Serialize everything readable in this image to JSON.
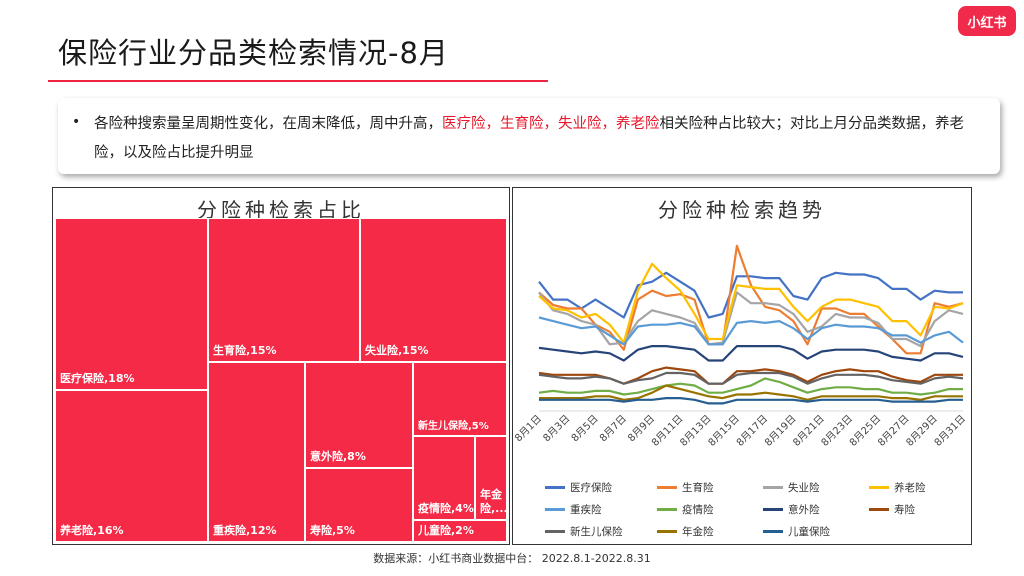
{
  "header": {
    "title": "保险行业分品类检索情况-8月",
    "logo_text": "小红书"
  },
  "note": {
    "bullet": "•",
    "segments": [
      {
        "text": "各险种搜索量呈周期性变化，在周末降低，周中升高，",
        "highlight": false
      },
      {
        "text": "医疗险，生育险，失业险，养老险",
        "highlight": true
      },
      {
        "text": "相关险种占比较大；对比上月分品类数据，养老险，以及险占比提升明显",
        "highlight": false
      }
    ]
  },
  "treemap": {
    "title": "分险种检索占比",
    "tiles": [
      {
        "label": "医疗保险,18%"
      },
      {
        "label": "养老险,16%"
      },
      {
        "label": "生育险,15%"
      },
      {
        "label": "失业险,15%"
      },
      {
        "label": "重疾险,12%"
      },
      {
        "label": "意外险,8%"
      },
      {
        "label": "寿险,5%"
      },
      {
        "label": "新生儿保险,5%"
      },
      {
        "label": "疫情险,4%"
      },
      {
        "label": "年金险,..."
      },
      {
        "label": "儿童险,2%"
      }
    ]
  },
  "chart_data": {
    "type": "line",
    "title": "分险种检索趋势",
    "x": [
      "8月1日",
      "8月2日",
      "8月3日",
      "8月4日",
      "8月5日",
      "8月6日",
      "8月7日",
      "8月8日",
      "8月9日",
      "8月10日",
      "8月11日",
      "8月12日",
      "8月13日",
      "8月14日",
      "8月15日",
      "8月16日",
      "8月17日",
      "8月18日",
      "8月19日",
      "8月20日",
      "8月21日",
      "8月22日",
      "8月23日",
      "8月24日",
      "8月25日",
      "8月26日",
      "8月27日",
      "8月28日",
      "8月29日",
      "8月30日",
      "8月31日"
    ],
    "xtick_labels": [
      "8月1日",
      "8月3日",
      "8月5日",
      "8月7日",
      "8月9日",
      "8月11日",
      "8月13日",
      "8月15日",
      "8月17日",
      "8月19日",
      "8月21日",
      "8月23日",
      "8月25日",
      "8月27日",
      "8月29日",
      "8月31日"
    ],
    "ylim": [
      0,
      100
    ],
    "series": [
      {
        "name": "医疗保险",
        "color": "#4472c4",
        "values": [
          70,
          60,
          60,
          55,
          60,
          55,
          50,
          68,
          70,
          75,
          70,
          65,
          50,
          52,
          73,
          73,
          72,
          72,
          62,
          60,
          72,
          75,
          74,
          74,
          72,
          66,
          66,
          60,
          65,
          64,
          64
        ]
      },
      {
        "name": "生育险",
        "color": "#ed7d31",
        "values": [
          64,
          57,
          55,
          55,
          46,
          42,
          32,
          60,
          65,
          62,
          63,
          60,
          35,
          35,
          90,
          68,
          56,
          54,
          48,
          35,
          55,
          55,
          52,
          52,
          45,
          38,
          30,
          30,
          58,
          56,
          58
        ]
      },
      {
        "name": "失业险",
        "color": "#a5a5a5",
        "values": [
          64,
          54,
          52,
          48,
          46,
          35,
          36,
          48,
          54,
          52,
          50,
          47,
          35,
          36,
          64,
          58,
          58,
          57,
          52,
          42,
          45,
          52,
          50,
          50,
          47,
          38,
          38,
          34,
          48,
          54,
          52
        ]
      },
      {
        "name": "养老险",
        "color": "#ffc000",
        "values": [
          62,
          55,
          54,
          50,
          52,
          46,
          36,
          65,
          80,
          72,
          65,
          52,
          38,
          38,
          68,
          67,
          66,
          66,
          56,
          48,
          56,
          60,
          60,
          58,
          56,
          48,
          48,
          40,
          56,
          55,
          58
        ]
      },
      {
        "name": "重疾险",
        "color": "#5b9bd5",
        "values": [
          50,
          48,
          46,
          44,
          45,
          40,
          35,
          45,
          46,
          46,
          47,
          45,
          35,
          35,
          47,
          48,
          47,
          48,
          44,
          38,
          44,
          46,
          45,
          45,
          44,
          40,
          40,
          36,
          40,
          42,
          36
        ]
      },
      {
        "name": "疫情险",
        "color": "#70ad47",
        "values": [
          8,
          9,
          8,
          8,
          9,
          9,
          7,
          8,
          10,
          12,
          13,
          12,
          8,
          8,
          10,
          12,
          16,
          14,
          11,
          8,
          10,
          11,
          11,
          10,
          10,
          8,
          8,
          7,
          8,
          10,
          10
        ]
      },
      {
        "name": "意外险",
        "color": "#264478",
        "values": [
          33,
          32,
          31,
          30,
          31,
          30,
          26,
          32,
          34,
          34,
          33,
          32,
          26,
          26,
          34,
          34,
          34,
          34,
          32,
          27,
          31,
          32,
          32,
          32,
          31,
          28,
          27,
          26,
          30,
          30,
          28
        ]
      },
      {
        "name": "寿险",
        "color": "#9e480e",
        "values": [
          19,
          18,
          18,
          18,
          18,
          16,
          13,
          16,
          20,
          22,
          21,
          20,
          13,
          13,
          20,
          20,
          21,
          20,
          18,
          14,
          18,
          20,
          21,
          20,
          20,
          17,
          15,
          14,
          18,
          18,
          18
        ]
      },
      {
        "name": "新生儿保险",
        "color": "#636363",
        "values": [
          18,
          17,
          16,
          16,
          17,
          16,
          13,
          15,
          16,
          19,
          19,
          18,
          13,
          13,
          18,
          19,
          19,
          19,
          17,
          13,
          16,
          18,
          18,
          18,
          17,
          15,
          14,
          13,
          16,
          17,
          16
        ]
      },
      {
        "name": "年金险",
        "color": "#997300",
        "values": [
          5,
          5,
          5,
          5,
          6,
          6,
          4,
          5,
          8,
          12,
          10,
          8,
          6,
          5,
          7,
          7,
          8,
          7,
          6,
          4,
          6,
          6,
          6,
          6,
          6,
          5,
          5,
          4,
          6,
          6,
          6
        ]
      },
      {
        "name": "儿童保险",
        "color": "#255e91",
        "values": [
          4,
          4,
          4,
          4,
          4,
          4,
          3,
          4,
          4,
          5,
          5,
          4,
          2,
          2,
          4,
          4,
          4,
          4,
          4,
          3,
          4,
          4,
          4,
          4,
          4,
          3,
          3,
          3,
          3,
          4,
          4
        ]
      }
    ]
  },
  "footer": {
    "source": "数据来源：小红书商业数据中台： 2022.8.1-2022.8.31"
  }
}
